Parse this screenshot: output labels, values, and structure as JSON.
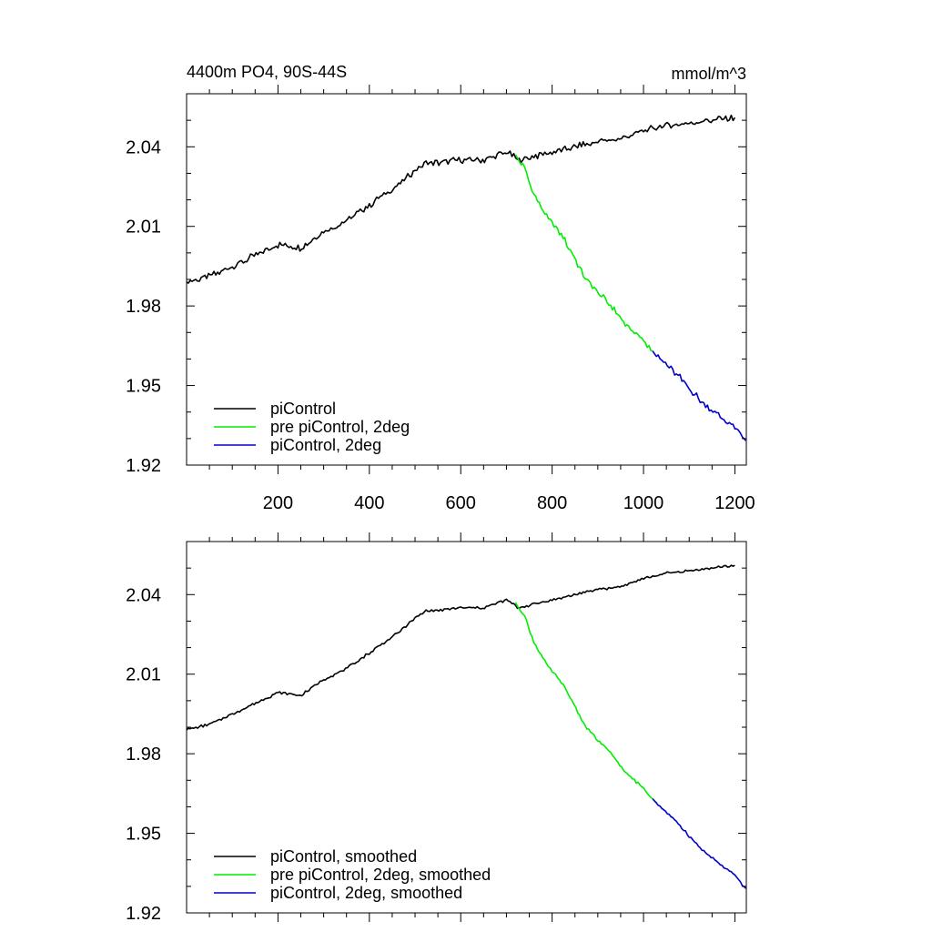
{
  "chart_data": [
    {
      "type": "line",
      "title_left": "4400m PO4, 90S-44S",
      "title_right": "mmol/m^3",
      "xlabel": "",
      "ylabel": "",
      "xlim": [
        0,
        1225
      ],
      "ylim": [
        1.92,
        2.06
      ],
      "xticks": [
        200,
        400,
        600,
        800,
        1000,
        1200
      ],
      "xtick_labels": [
        "200",
        "400",
        "600",
        "800",
        "1000",
        "1200"
      ],
      "yticks": [
        1.92,
        1.95,
        1.98,
        2.01,
        2.04
      ],
      "ytick_labels": [
        "1.92",
        "1.95",
        "1.98",
        "2.01",
        "2.04"
      ],
      "legend_position": "bottom-left",
      "series": [
        {
          "name": "piControl",
          "color": "#000000",
          "x": [
            0,
            50,
            100,
            150,
            200,
            250,
            300,
            350,
            400,
            450,
            500,
            525,
            550,
            600,
            650,
            700,
            725,
            750,
            800,
            850,
            900,
            950,
            1000,
            1050,
            1100,
            1150,
            1200
          ],
          "y": [
            1.989,
            1.991,
            1.995,
            1.999,
            2.003,
            2.002,
            2.008,
            2.012,
            2.018,
            2.024,
            2.031,
            2.034,
            2.034,
            2.035,
            2.035,
            2.038,
            2.035,
            2.036,
            2.038,
            2.04,
            2.042,
            2.043,
            2.046,
            2.048,
            2.049,
            2.05,
            2.051
          ]
        },
        {
          "name": "pre piControl, 2deg",
          "color": "#00ee00",
          "x": [
            720,
            740,
            760,
            790,
            820,
            850,
            870,
            900,
            930,
            960,
            1000,
            1020
          ],
          "y": [
            2.037,
            2.032,
            2.022,
            2.013,
            2.007,
            1.998,
            1.991,
            1.985,
            1.98,
            1.973,
            1.967,
            1.963
          ]
        },
        {
          "name": "piControl, 2deg",
          "color": "#0000cc",
          "x": [
            1020,
            1050,
            1080,
            1110,
            1140,
            1170,
            1200,
            1225
          ],
          "y": [
            1.963,
            1.958,
            1.953,
            1.947,
            1.942,
            1.938,
            1.934,
            1.929
          ]
        }
      ]
    },
    {
      "type": "line",
      "title_left": "",
      "title_right": "",
      "xlabel": "",
      "ylabel": "",
      "xlim": [
        0,
        1225
      ],
      "ylim": [
        1.92,
        2.06
      ],
      "xticks": [
        200,
        400,
        600,
        800,
        1000,
        1200
      ],
      "xtick_labels": [],
      "yticks": [
        1.92,
        1.95,
        1.98,
        2.01,
        2.04
      ],
      "ytick_labels": [
        "1.92",
        "1.95",
        "1.98",
        "2.01",
        "2.04"
      ],
      "legend_position": "bottom-left",
      "series": [
        {
          "name": "piControl, smoothed",
          "color": "#000000",
          "x": [
            0,
            50,
            100,
            150,
            200,
            250,
            300,
            350,
            400,
            450,
            500,
            525,
            550,
            600,
            650,
            700,
            725,
            750,
            800,
            850,
            900,
            950,
            1000,
            1050,
            1100,
            1150,
            1200
          ],
          "y": [
            1.989,
            1.991,
            1.995,
            1.999,
            2.003,
            2.002,
            2.008,
            2.012,
            2.018,
            2.024,
            2.031,
            2.034,
            2.034,
            2.035,
            2.035,
            2.038,
            2.035,
            2.036,
            2.038,
            2.04,
            2.042,
            2.043,
            2.046,
            2.048,
            2.049,
            2.05,
            2.051
          ]
        },
        {
          "name": "pre piControl, 2deg, smoothed",
          "color": "#00ee00",
          "x": [
            720,
            740,
            760,
            790,
            820,
            850,
            870,
            900,
            930,
            960,
            1000,
            1020
          ],
          "y": [
            2.037,
            2.032,
            2.022,
            2.013,
            2.007,
            1.998,
            1.991,
            1.985,
            1.98,
            1.973,
            1.967,
            1.963
          ]
        },
        {
          "name": "piControl, 2deg, smoothed",
          "color": "#0000cc",
          "x": [
            1020,
            1050,
            1080,
            1110,
            1140,
            1170,
            1200,
            1225
          ],
          "y": [
            1.963,
            1.958,
            1.953,
            1.947,
            1.942,
            1.938,
            1.934,
            1.929
          ]
        }
      ]
    }
  ]
}
